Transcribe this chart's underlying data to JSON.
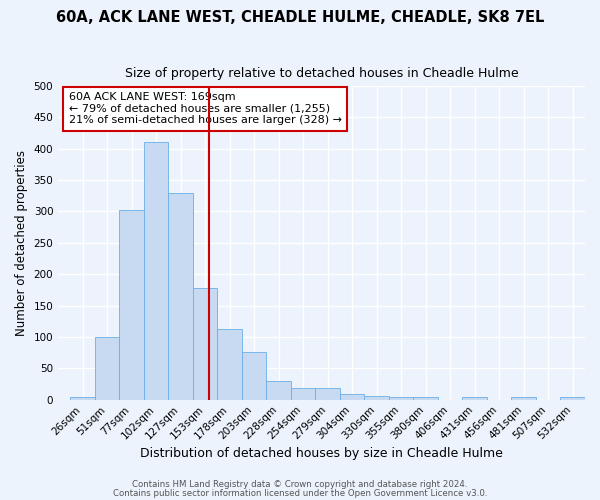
{
  "title1": "60A, ACK LANE WEST, CHEADLE HULME, CHEADLE, SK8 7EL",
  "title2": "Size of property relative to detached houses in Cheadle Hulme",
  "xlabel": "Distribution of detached houses by size in Cheadle Hulme",
  "ylabel": "Number of detached properties",
  "bar_labels": [
    "26sqm",
    "51sqm",
    "77sqm",
    "102sqm",
    "127sqm",
    "153sqm",
    "178sqm",
    "203sqm",
    "228sqm",
    "254sqm",
    "279sqm",
    "304sqm",
    "330sqm",
    "355sqm",
    "380sqm",
    "406sqm",
    "431sqm",
    "456sqm",
    "481sqm",
    "507sqm",
    "532sqm"
  ],
  "bar_values": [
    5,
    100,
    302,
    410,
    330,
    178,
    112,
    76,
    30,
    18,
    18,
    9,
    6,
    4,
    5,
    0,
    5,
    0,
    5,
    0,
    4
  ],
  "bar_color": "#c8daf2",
  "bar_edge_color": "#6aaee8",
  "annotation_title": "60A ACK LANE WEST: 169sqm",
  "annotation_line1": "← 79% of detached houses are smaller (1,255)",
  "annotation_line2": "21% of semi-detached houses are larger (328) →",
  "vline_color": "#cc0000",
  "footer1": "Contains HM Land Registry data © Crown copyright and database right 2024.",
  "footer2": "Contains public sector information licensed under the Open Government Licence v3.0.",
  "bg_color": "#edf3fc",
  "grid_color": "#ffffff",
  "annotation_box_color": "#ffffff",
  "annotation_box_edge": "#cc0000",
  "ylim": [
    0,
    500
  ]
}
